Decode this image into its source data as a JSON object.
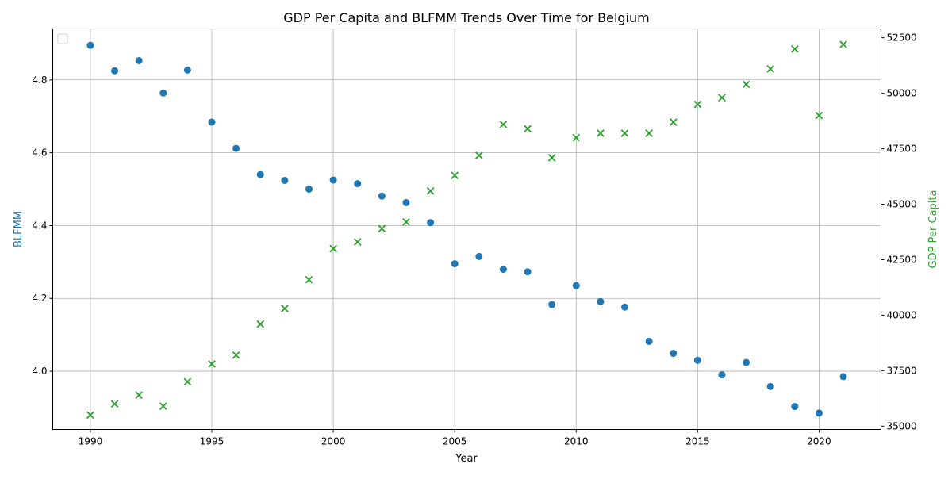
{
  "chart_data": {
    "type": "scatter",
    "title": "GDP Per Capita and BLFMM Trends Over Time for Belgium",
    "xlabel": "Year",
    "ylabel_left": "BLFMM",
    "ylabel_right": "GDP Per Capita",
    "xlim": [
      1988.45,
      2022.55
    ],
    "ylim_left": [
      3.84,
      4.94
    ],
    "ylim_right": [
      34850,
      52900
    ],
    "x_ticks": [
      1990,
      1995,
      2000,
      2005,
      2010,
      2015,
      2020
    ],
    "y_ticks_left": [
      "4.0",
      "4.2",
      "4.4",
      "4.6",
      "4.8"
    ],
    "y_ticks_right": [
      "35000",
      "37500",
      "40000",
      "42500",
      "45000",
      "47500",
      "50000",
      "52500"
    ],
    "grid": true,
    "legend_position": "top-left",
    "colors": {
      "blfmm": "#1f77b4",
      "gdp": "#2ca02c",
      "grid": "#b0b0b0"
    },
    "x": [
      1990,
      1991,
      1992,
      1993,
      1994,
      1995,
      1996,
      1997,
      1998,
      1999,
      2000,
      2001,
      2002,
      2003,
      2004,
      2005,
      2006,
      2007,
      2008,
      2009,
      2010,
      2011,
      2012,
      2013,
      2014,
      2015,
      2016,
      2017,
      2018,
      2019,
      2020,
      2021
    ],
    "series": [
      {
        "axis": "left",
        "marker": "circle",
        "values": [
          4.895,
          4.825,
          4.853,
          4.764,
          4.827,
          4.684,
          4.612,
          4.54,
          4.524,
          4.5,
          4.525,
          4.515,
          4.481,
          4.463,
          4.408,
          4.295,
          4.315,
          4.28,
          4.273,
          4.183,
          4.235,
          4.191,
          4.176,
          4.082,
          4.049,
          4.03,
          3.99,
          4.024,
          3.958,
          3.903,
          3.885,
          3.985
        ]
      },
      {
        "axis": "right",
        "marker": "x",
        "values": [
          35500,
          36000,
          36400,
          35900,
          37000,
          37800,
          38200,
          39600,
          40300,
          41600,
          43000,
          43300,
          43900,
          44200,
          45600,
          46300,
          47200,
          48600,
          48400,
          47100,
          48000,
          48200,
          48200,
          48200,
          48700,
          49500,
          49800,
          50400,
          51100,
          52000,
          49000,
          52200
        ]
      }
    ]
  }
}
